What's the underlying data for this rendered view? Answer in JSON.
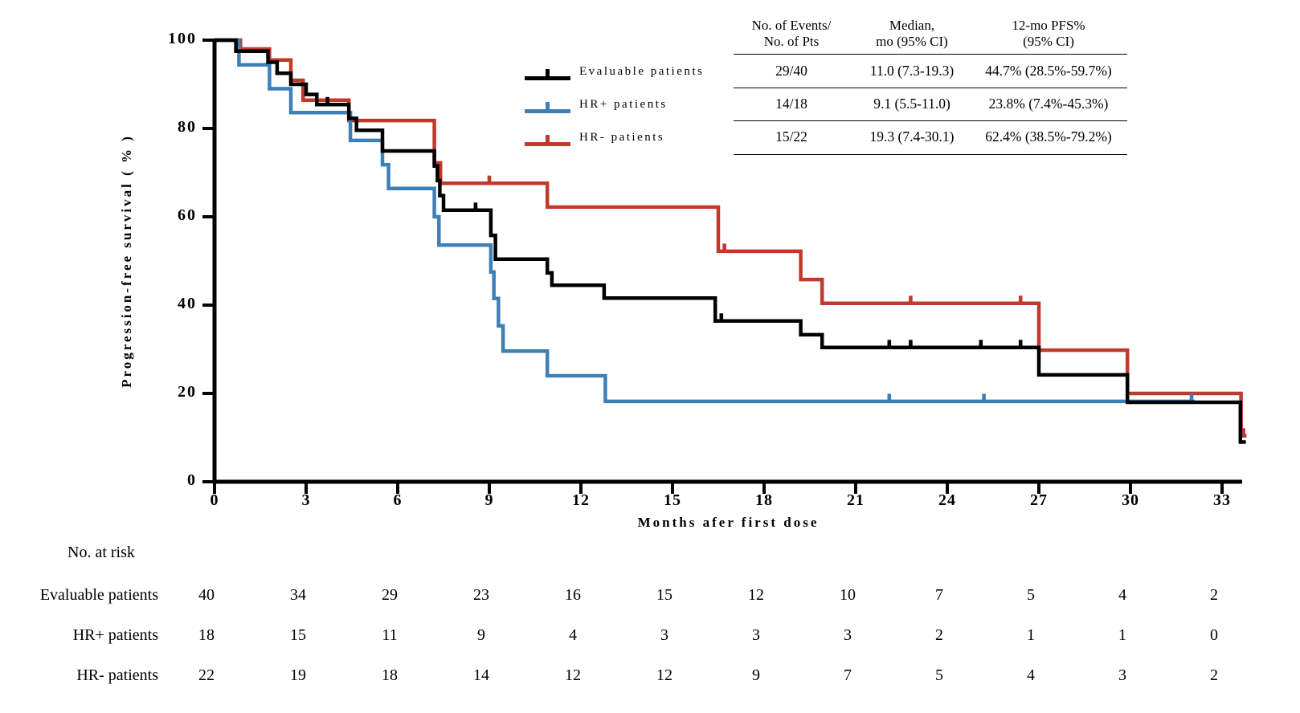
{
  "figure": {
    "y_axis": {
      "label": "Progression-free survival ( % )",
      "ticks": [
        0,
        20,
        40,
        60,
        80,
        100
      ]
    },
    "x_axis": {
      "label": "Months afer first dose",
      "ticks": [
        0,
        3,
        6,
        9,
        12,
        15,
        18,
        21,
        24,
        27,
        30,
        33
      ]
    },
    "legend": {
      "items": [
        {
          "label": "Evaluable patients",
          "color": "#000000"
        },
        {
          "label": "HR+ patients",
          "color": "#3E7FB8"
        },
        {
          "label": "HR- patients",
          "color": "#C03A2C"
        }
      ]
    },
    "stats_table": {
      "col_headers": [
        {
          "line1": "No. of Events/",
          "line2": "No. of Pts"
        },
        {
          "line1": "Median,",
          "line2": "mo (95% CI)"
        },
        {
          "line1": "12-mo PFS%",
          "line2": "(95% CI)"
        }
      ],
      "rows": [
        {
          "events": "29/40",
          "median": "11.0 (7.3-19.3)",
          "pfs12": "44.7% (28.5%-59.7%)"
        },
        {
          "events": "14/18",
          "median": "9.1 (5.5-11.0)",
          "pfs12": "23.8% (7.4%-45.3%)"
        },
        {
          "events": "15/22",
          "median": "19.3 (7.4-30.1)",
          "pfs12": "62.4% (38.5%-79.2%)"
        }
      ]
    },
    "risk_table": {
      "title": "No. at risk",
      "months": [
        0,
        3,
        6,
        9,
        12,
        15,
        18,
        21,
        24,
        27,
        30,
        33
      ],
      "rows": [
        {
          "label": "Evaluable patients",
          "values": [
            40,
            34,
            29,
            23,
            16,
            15,
            12,
            10,
            7,
            5,
            4,
            2
          ]
        },
        {
          "label": "HR+ patients",
          "values": [
            18,
            15,
            11,
            9,
            4,
            3,
            3,
            3,
            2,
            1,
            1,
            0
          ]
        },
        {
          "label": "HR- patients",
          "values": [
            22,
            19,
            18,
            14,
            12,
            12,
            9,
            7,
            5,
            4,
            3,
            2
          ]
        }
      ]
    }
  },
  "chart_data": {
    "type": "line",
    "subtype": "kaplan-meier-step",
    "title": "",
    "xlabel": "Months afer first dose",
    "ylabel": "Progression-free survival ( % )",
    "xlim": [
      0,
      34.5
    ],
    "ylim": [
      0,
      100
    ],
    "x_ticks": [
      0,
      3,
      6,
      9,
      12,
      15,
      18,
      21,
      24,
      27,
      30,
      33
    ],
    "y_ticks": [
      0,
      20,
      40,
      60,
      80,
      100
    ],
    "grid": false,
    "legend_position": "upper-center-left",
    "series": [
      {
        "name": "HR- patients",
        "color": "#C03A2C",
        "start_pct": 100,
        "steps": [
          [
            0.85,
            98.0
          ],
          [
            1.8,
            95.5
          ],
          [
            2.5,
            90.9
          ],
          [
            2.9,
            86.4
          ],
          [
            4.4,
            81.8
          ],
          [
            7.2,
            72.2
          ],
          [
            7.4,
            67.6
          ],
          [
            10.9,
            62.2
          ],
          [
            16.5,
            52.2
          ],
          [
            19.2,
            45.8
          ],
          [
            19.9,
            40.4
          ],
          [
            27.0,
            29.8
          ],
          [
            29.9,
            20.0
          ],
          [
            33.62,
            10.4
          ]
        ],
        "censors": [
          [
            9.0,
            67.6
          ],
          [
            16.7,
            52.2
          ],
          [
            22.8,
            40.4
          ],
          [
            26.4,
            40.4
          ],
          [
            33.7,
            10.4
          ]
        ],
        "end_month": 33.8
      },
      {
        "name": "HR+ patients",
        "color": "#3E7FB8",
        "start_pct": 100,
        "steps": [
          [
            0.8,
            94.4
          ],
          [
            1.8,
            89.0
          ],
          [
            2.5,
            83.6
          ],
          [
            4.45,
            77.3
          ],
          [
            5.5,
            71.8
          ],
          [
            5.7,
            66.4
          ],
          [
            7.2,
            60.0
          ],
          [
            7.35,
            53.6
          ],
          [
            9.05,
            47.5
          ],
          [
            9.15,
            41.5
          ],
          [
            9.3,
            35.3
          ],
          [
            9.45,
            29.6
          ],
          [
            10.9,
            24.0
          ],
          [
            12.8,
            18.2
          ]
        ],
        "censors": [
          [
            22.1,
            18.2
          ],
          [
            25.2,
            18.2
          ],
          [
            32.0,
            18.2
          ]
        ],
        "end_month": 32.1
      },
      {
        "name": "Evaluable patients",
        "color": "#000000",
        "start_pct": 100,
        "steps": [
          [
            0.7,
            97.5
          ],
          [
            1.75,
            95.0
          ],
          [
            2.05,
            92.5
          ],
          [
            2.5,
            90.0
          ],
          [
            3.0,
            87.7
          ],
          [
            3.35,
            85.4
          ],
          [
            4.4,
            82.3
          ],
          [
            4.65,
            79.6
          ],
          [
            5.5,
            74.9
          ],
          [
            7.2,
            71.5
          ],
          [
            7.3,
            68.2
          ],
          [
            7.38,
            64.8
          ],
          [
            7.5,
            61.5
          ],
          [
            9.05,
            55.8
          ],
          [
            9.2,
            50.4
          ],
          [
            10.9,
            47.3
          ],
          [
            11.05,
            44.5
          ],
          [
            12.76,
            41.6
          ],
          [
            16.4,
            36.4
          ],
          [
            19.2,
            33.3
          ],
          [
            19.9,
            30.4
          ],
          [
            27.0,
            24.2
          ],
          [
            29.9,
            18.0
          ],
          [
            33.6,
            9.0
          ]
        ],
        "censors": [
          [
            3.7,
            85.4
          ],
          [
            8.55,
            61.5
          ],
          [
            16.6,
            36.4
          ],
          [
            22.1,
            30.4
          ],
          [
            22.8,
            30.4
          ],
          [
            25.1,
            30.4
          ],
          [
            26.4,
            30.4
          ]
        ],
        "end_month": 33.78
      }
    ]
  }
}
